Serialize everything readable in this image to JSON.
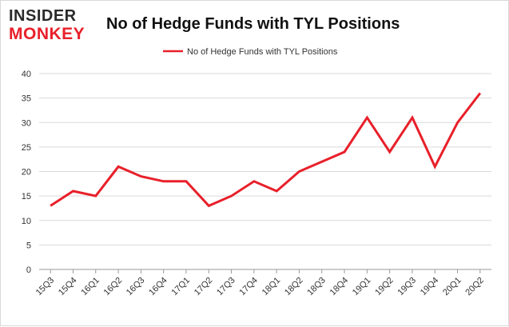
{
  "logo": {
    "line1": "INSIDER",
    "line2": "MONKEY"
  },
  "colors": {
    "series": "#e8202a",
    "grid": "#d9d9d9",
    "axis": "#999999"
  },
  "chart_data": {
    "type": "line",
    "title": "No of Hedge Funds with TYL Positions",
    "categories": [
      "15Q3",
      "15Q4",
      "16Q1",
      "16Q2",
      "16Q3",
      "16Q4",
      "17Q1",
      "17Q2",
      "17Q3",
      "17Q4",
      "18Q1",
      "18Q2",
      "18Q3",
      "18Q4",
      "19Q1",
      "19Q2",
      "19Q3",
      "19Q4",
      "20Q1",
      "20Q2"
    ],
    "series": [
      {
        "name": "No of Hedge Funds with TYL Positions",
        "values": [
          13,
          16,
          15,
          21,
          19,
          18,
          18,
          13,
          15,
          18,
          16,
          20,
          22,
          24,
          31,
          24,
          31,
          21,
          30,
          36
        ]
      }
    ],
    "yticks": [
      0,
      5,
      10,
      15,
      20,
      25,
      30,
      35,
      40
    ],
    "ylim": [
      0,
      40
    ],
    "grid": "horizontal",
    "legend": "top-center"
  }
}
